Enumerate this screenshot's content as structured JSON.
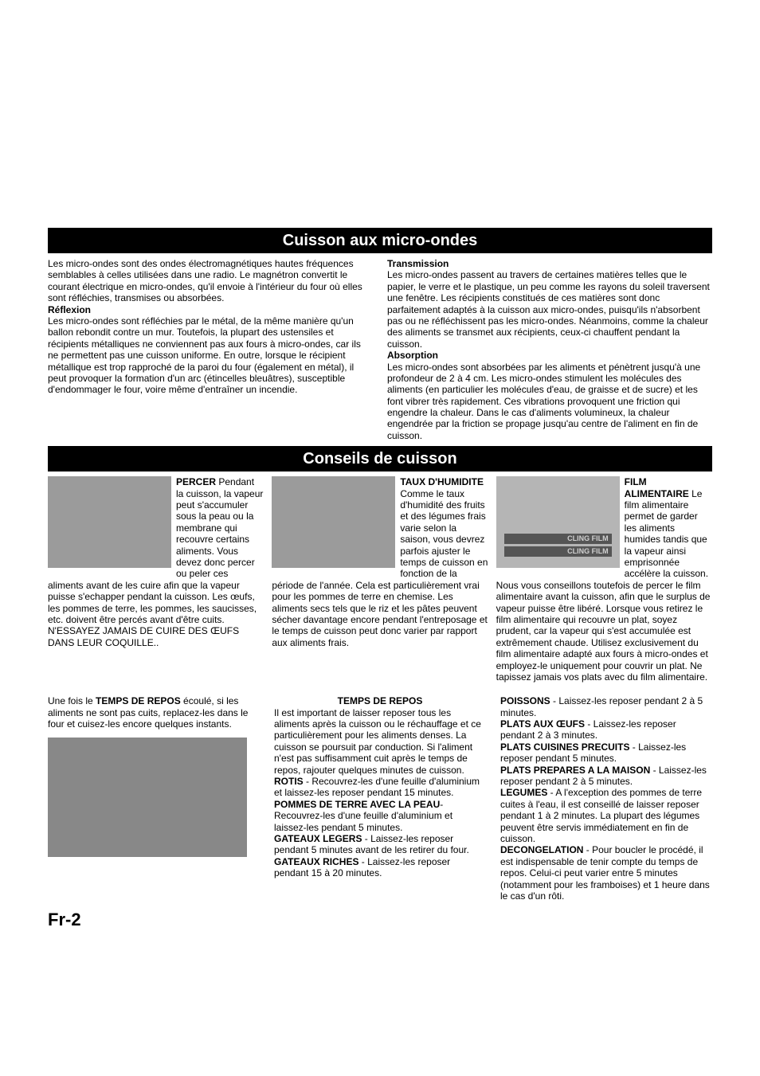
{
  "colors": {
    "band_bg": "#000000",
    "band_fg": "#ffffff",
    "body_bg": "#ffffff",
    "img_placeholder": "#9b9b9b"
  },
  "typography": {
    "body_pt": 12,
    "band_pt": 20,
    "pagenum_pt": 22,
    "family": "Arial"
  },
  "band1": "Cuisson aux micro-ondes",
  "band2": "Conseils de cuisson",
  "intro_left": {
    "p1": "Les micro-ondes sont des ondes électromagnétiques hautes fréquences semblables à celles utilisées dans une radio. Le magnétron convertit le courant électrique en micro-ondes, qu'il envoie à l'intérieur du four où elles sont réfléchies, transmises ou absorbées.",
    "h1": "Réflexion",
    "p2": "Les micro-ondes sont réfléchies par le métal, de la même manière qu'un ballon rebondit contre un mur. Toutefois, la plupart des ustensiles et récipients métalliques ne conviennent pas aux fours à micro-ondes, car ils ne permettent pas une cuisson uniforme. En outre, lorsque le récipient métallique est trop rapproché de la paroi du four (également en métal), il peut provoquer la formation d'un arc (étincelles bleuâtres), susceptible d'endommager le four, voire même d'entraîner un incendie."
  },
  "intro_right": {
    "h1": "Transmission",
    "p1": "Les micro-ondes passent au travers de certaines matières telles que le papier, le verre et le plastique, un peu comme les rayons du soleil traversent une fenêtre. Les récipients constitués de ces matières sont donc parfaitement adaptés à la cuisson aux micro-ondes, puisqu'ils n'absorbent pas ou ne réfléchissent pas les micro-ondes. Néanmoins, comme la chaleur des aliments se transmet aux récipients, ceux-ci chauffent pendant la cuisson.",
    "h2": "Absorption",
    "p2": "Les micro-ondes sont absorbées par les aliments et pénètrent jusqu'à une profondeur de 2 à 4 cm. Les micro-ondes stimulent les molécules des aliments (en particulier les molécules d'eau, de graisse et de sucre) et les font vibrer très rapidement. Ces vibrations provoquent une friction qui engendre la chaleur. Dans le cas d'aliments volumineux, la chaleur engendrée par la friction se propage jusqu'au centre de l'aliment en fin de cuisson."
  },
  "tips": {
    "percer": {
      "h": "PERCER",
      "body": "Pendant la cuisson, la vapeur peut s'accumuler sous la peau ou la membrane qui recouvre certains aliments. Vous devez donc percer ou peler ces aliments avant de les cuire afin que la vapeur puisse s'echapper pendant la cuisson. Les œufs, les pommes de terre, les pommes, les saucisses, etc. doivent être percés avant d'être cuits. N'ESSAYEZ JAMAIS DE CUIRE DES ŒUFS DANS LEUR COQUILLE.."
    },
    "humidite": {
      "h": "TAUX D'HUMIDITE",
      "body": "Comme le taux d'humidité des fruits et des légumes frais varie selon la saison, vous devrez parfois ajuster le temps de cuisson en fonction de la période de l'année. Cela est particulièrement vrai pour les pommes de terre en chemise. Les aliments secs tels que le riz et les pâtes peuvent sécher davantage encore pendant l'entreposage et le temps de cuisson peut donc varier par rapport aux aliments frais."
    },
    "film": {
      "h": "FILM ALIMENTAIRE",
      "strip": "CLING FILM",
      "body": "Le film alimentaire permet de garder les aliments humides tandis que la vapeur ainsi emprisonnée accélère la cuisson. Nous vous conseillons toutefois de percer le film alimentaire avant la cuisson, afin que le surplus de vapeur puisse être libéré. Lorsque vous retirez le film alimentaire qui recouvre un plat, soyez prudent, car la vapeur qui s'est accumulée est extrêmement chaude.\nUtilisez exclusivement du film alimentaire adapté aux fours à micro-ondes et employez-le uniquement pour couvrir un plat. Ne tapissez jamais vos plats avec du film alimentaire."
    }
  },
  "lower": {
    "left": {
      "t1a": "Une fois le ",
      "t1b": "TEMPS DE REPOS",
      "t1c": " écoulé, si les aliments ne sont pas cuits, replacez-les dans le four et cuisez-les encore quelques instants."
    },
    "mid": {
      "h": "TEMPS DE REPOS",
      "p1": "Il est important de laisser reposer tous les aliments après la cuisson ou le réchauffage et ce particulièrement pour les aliments denses.  La cuisson se poursuit par conduction. Si l'aliment n'est pas suffisamment cuit après le temps de repos, rajouter quelques minutes de cuisson.",
      "k_rotis": "ROTIS",
      "rotis": " - Recouvrez-les d'une feuille d'aluminium et laissez-les reposer pendant 15 minutes.",
      "k_pdt": "POMMES DE TERRE AVEC LA PEAU",
      "pdt": "- Recouvrez-les d'une feuille d'aluminium et laissez-les pendant 5 minutes.",
      "k_gl": "GATEAUX LEGERS",
      "gl": " - Laissez-les reposer pendant 5 minutes avant de les retirer du four.",
      "k_gr": "GATEAUX RICHES",
      "gr": " - Laissez-les reposer pendant 15 à 20 minutes."
    },
    "right": {
      "k_poissons": "POISSONS",
      "poissons": " - Laissez-les reposer pendant 2 à 5 minutes.",
      "k_oeufs": "PLATS AUX ŒUFS",
      "oeufs": " - Laissez-les reposer pendant 2 à 3 minutes.",
      "k_precuits": "PLATS CUISINES PRECUITS",
      "precuits": " - Laissez-les reposer pendant 5 minutes.",
      "k_maison": "PLATS PREPARES A LA MAISON",
      "maison": " - Laissez-les reposer pendant 2 à 5 minutes.",
      "k_legumes": "LEGUMES",
      "legumes": " - A l'exception des pommes de terre cuites à l'eau, il est conseillé de laisser reposer pendant 1 à 2 minutes. La plupart des légumes peuvent être servis immédiatement en fin de cuisson.",
      "k_decong": "DECONGELATION",
      "decong": " - Pour boucler le procédé, il est indispensable de tenir compte du temps de repos. Celui-ci peut varier entre 5 minutes (notamment pour les framboises) et 1 heure dans le cas d'un rôti."
    }
  },
  "page_number": "Fr-2"
}
